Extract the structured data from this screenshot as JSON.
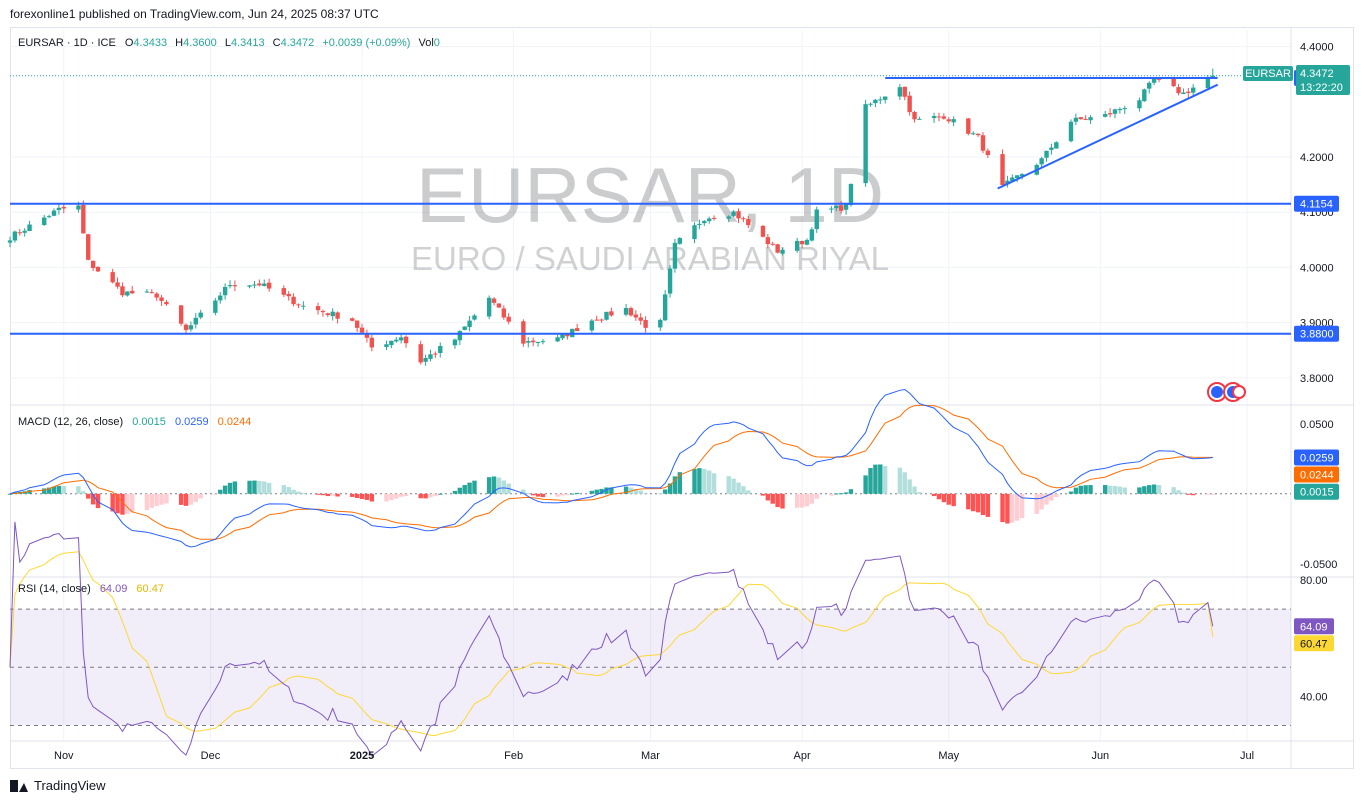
{
  "header": {
    "publisher_line": "forexonline1 published on TradingView.com, Jun 24, 2025 08:37 UTC"
  },
  "legend": {
    "symbol": "EURSAR · 1D · ICE",
    "o_label": "O",
    "o": "4.3433",
    "h_label": "H",
    "h": "4.3600",
    "l_label": "L",
    "l": "4.3413",
    "c_label": "C",
    "c": "4.3472",
    "change": "+0.0039 (+0.09%)",
    "vol_label": "Vol",
    "vol": "0"
  },
  "watermark": {
    "big": "EURSAR, 1D",
    "small": "EURO / SAUDI ARABIAN RIYAL"
  },
  "price_tag": {
    "symbol": "EURSAR",
    "price": "4.3472",
    "countdown": "13:22:20"
  },
  "macd_legend": {
    "title": "MACD (12, 26, close)",
    "hist": "0.0015",
    "macd": "0.0259",
    "signal": "0.0244"
  },
  "rsi_legend": {
    "title": "RSI (14, close)",
    "rsi": "64.09",
    "ma": "60.47"
  },
  "colors": {
    "up": "#26a69a",
    "down": "#ef5350",
    "line_blue": "#2962ff",
    "macd": "#2962ff",
    "signal": "#ff6d00",
    "rsi": "#7e57c2",
    "rsi_ma": "#fdd835",
    "hist_up_strong": "#26a69a",
    "hist_up_weak": "#b2dfdb",
    "hist_down_strong": "#ff5252",
    "hist_down_weak": "#ffcdd2"
  },
  "footer": {
    "brand": "TradingView"
  },
  "chart_data": [
    {
      "type": "candlestick",
      "title": "EURSAR, 1D",
      "subtitle": "EURO / SAUDI ARABIAN RIYAL",
      "ylim": [
        3.76,
        4.43
      ],
      "y_ticks": [
        "4.4000",
        "4.2000",
        "4.1000",
        "4.0000",
        "3.9000",
        "3.8000"
      ],
      "y_tick_values": [
        4.4,
        4.2,
        4.1,
        4.0,
        3.9,
        3.8
      ],
      "x_labels": [
        "Nov",
        "Dec",
        "2025",
        "Feb",
        "Mar",
        "Apr",
        "May",
        "Jun",
        "Jul"
      ],
      "x_label_dates": [
        "2024-11-01",
        "2024-12-01",
        "2025-01-01",
        "2025-02-01",
        "2025-03-01",
        "2025-04-01",
        "2025-05-01",
        "2025-06-01",
        "2025-07-01"
      ],
      "date_range": [
        "2024-10-21",
        "2025-07-10"
      ],
      "anchors": [
        [
          "2024-10-21",
          4.055
        ],
        [
          "2024-10-31",
          4.105
        ],
        [
          "2024-11-04",
          4.11
        ],
        [
          "2024-11-06",
          4.01
        ],
        [
          "2024-11-13",
          3.955
        ],
        [
          "2024-11-20",
          3.95
        ],
        [
          "2024-11-26",
          3.885
        ],
        [
          "2024-12-05",
          3.97
        ],
        [
          "2024-12-11",
          3.97
        ],
        [
          "2024-12-20",
          3.93
        ],
        [
          "2024-12-30",
          3.905
        ],
        [
          "2025-01-03",
          3.855
        ],
        [
          "2025-01-09",
          3.875
        ],
        [
          "2025-01-13",
          3.83
        ],
        [
          "2025-01-20",
          3.87
        ],
        [
          "2025-01-27",
          3.945
        ],
        [
          "2025-02-03",
          3.865
        ],
        [
          "2025-02-10",
          3.87
        ],
        [
          "2025-02-17",
          3.905
        ],
        [
          "2025-02-24",
          3.925
        ],
        [
          "2025-02-28",
          3.895
        ],
        [
          "2025-03-03",
          3.9
        ],
        [
          "2025-03-06",
          4.04
        ],
        [
          "2025-03-12",
          4.09
        ],
        [
          "2025-03-18",
          4.1
        ],
        [
          "2025-03-27",
          4.03
        ],
        [
          "2025-04-02",
          4.05
        ],
        [
          "2025-04-04",
          4.1
        ],
        [
          "2025-04-10",
          4.11
        ],
        [
          "2025-04-14",
          4.29
        ],
        [
          "2025-04-21",
          4.33
        ],
        [
          "2025-04-24",
          4.265
        ],
        [
          "2025-04-30",
          4.275
        ],
        [
          "2025-05-07",
          4.235
        ],
        [
          "2025-05-12",
          4.145
        ],
        [
          "2025-05-20",
          4.195
        ],
        [
          "2025-05-26",
          4.265
        ],
        [
          "2025-06-02",
          4.275
        ],
        [
          "2025-06-09",
          4.305
        ],
        [
          "2025-06-12",
          4.34
        ],
        [
          "2025-06-18",
          4.315
        ],
        [
          "2025-06-24",
          4.3472
        ]
      ],
      "last_candle": {
        "open": 4.3433,
        "high": 4.36,
        "low": 4.3413,
        "close": 4.3472
      },
      "horizontal_levels": [
        {
          "value": 4.3472,
          "label": "4.3472",
          "style": "dotted"
        },
        {
          "value": 4.343,
          "label": "4.3430",
          "style": "solid"
        },
        {
          "value": 4.1154,
          "label": "4.1154",
          "style": "solid"
        },
        {
          "value": 3.88,
          "label": "3.8800",
          "style": "solid"
        }
      ],
      "trendline": {
        "start": [
          "2025-05-11",
          4.143
        ],
        "end": [
          "2025-06-25",
          4.331
        ]
      },
      "resistance_segment": {
        "start": [
          "2025-04-18",
          4.343
        ],
        "end": [
          "2025-06-25",
          4.343
        ]
      }
    },
    {
      "type": "macd",
      "title": "MACD (12, 26, close)",
      "ylim": [
        -0.058,
        0.062
      ],
      "y_ticks": [
        "0.0500",
        "-0.0500"
      ],
      "y_tick_values": [
        0.05,
        -0.05
      ],
      "last": {
        "histogram": 0.0015,
        "macd": 0.0259,
        "signal": 0.0244
      }
    },
    {
      "type": "rsi",
      "title": "RSI (14, close)",
      "ylim": [
        25,
        80
      ],
      "y_ticks": [
        "80.00",
        "40.00"
      ],
      "y_tick_values": [
        80,
        40
      ],
      "band": [
        30,
        70
      ],
      "last": {
        "rsi": 64.09,
        "ma": 60.47
      }
    }
  ]
}
